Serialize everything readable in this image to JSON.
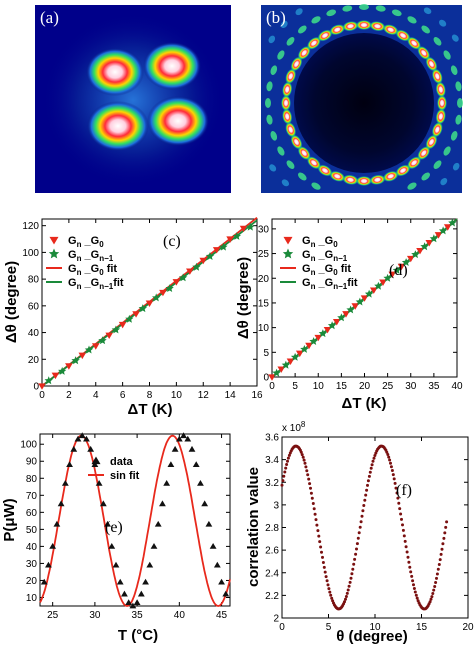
{
  "images": [
    {
      "label": "(a)",
      "kind": "four-lobe-intensity"
    },
    {
      "label": "(b)",
      "kind": "ring-of-spots",
      "spot_count": 36
    }
  ],
  "chart_data": [
    {
      "id": "c",
      "type": "scatter",
      "panel_label": "(c)",
      "xlabel": "ΔT (K)",
      "ylabel": "Δθ (degree)",
      "xlim": [
        0,
        16
      ],
      "ylim": [
        0,
        125
      ],
      "xticks": [
        0,
        2,
        4,
        6,
        8,
        10,
        12,
        14,
        16
      ],
      "yticks": [
        0,
        20,
        40,
        60,
        80,
        100,
        120
      ],
      "legend_position": "top-left",
      "series": [
        {
          "name": "Gn_G0",
          "display": [
            "G",
            "n",
            " _G",
            "0",
            ""
          ],
          "marker": "triangle-down",
          "color": "#e8291c",
          "x": [
            0,
            1,
            2,
            3,
            4,
            5,
            6,
            7,
            8,
            9,
            10,
            11,
            12,
            13,
            14,
            15
          ],
          "y": [
            0,
            8,
            15,
            23,
            30,
            38,
            46,
            54,
            62,
            70,
            78,
            86,
            94,
            102,
            110,
            118
          ]
        },
        {
          "name": "Gn_Gn-1",
          "display": [
            "G",
            "n",
            " _G",
            "n−1",
            ""
          ],
          "marker": "star",
          "color": "#1a8a3a",
          "x": [
            0.5,
            1.5,
            2.5,
            3.5,
            4.5,
            5.5,
            6.5,
            7.5,
            8.5,
            9.5,
            10.5,
            11.5,
            12.5,
            13.5,
            14.5,
            15.5
          ],
          "y": [
            4,
            11,
            19,
            27,
            34,
            42,
            50,
            58,
            66,
            73,
            81,
            89,
            97,
            104,
            112,
            119
          ]
        },
        {
          "name": "Gn_G0 fit",
          "display": [
            "G",
            "n",
            " _G",
            "0",
            "  fit"
          ],
          "marker": "line",
          "color": "#e8291c",
          "x": [
            0,
            16
          ],
          "y": [
            0,
            126
          ]
        },
        {
          "name": "Gn_Gn-1fit",
          "display": [
            "G",
            "n",
            " _G",
            "n−1",
            "fit"
          ],
          "marker": "line",
          "color": "#1a8a3a",
          "x": [
            0,
            16
          ],
          "y": [
            0,
            124
          ]
        }
      ]
    },
    {
      "id": "d",
      "type": "scatter",
      "panel_label": "(d)",
      "xlabel": "ΔT (K)",
      "ylabel": "Δθ (degree)",
      "xlim": [
        0,
        40
      ],
      "ylim": [
        0,
        32
      ],
      "xticks": [
        0,
        5,
        10,
        15,
        20,
        25,
        30,
        35,
        40
      ],
      "yticks": [
        0,
        5,
        10,
        15,
        20,
        25,
        30
      ],
      "legend_position": "top-left",
      "series": [
        {
          "name": "Gn_G0",
          "display": [
            "G",
            "n",
            " _G",
            "0",
            ""
          ],
          "marker": "triangle-down",
          "color": "#e8291c",
          "x": [
            0,
            2,
            4,
            6,
            8,
            10,
            12,
            14,
            16,
            18,
            20,
            22,
            24,
            26,
            28,
            30,
            32,
            34,
            36,
            38
          ],
          "y": [
            0,
            1.6,
            3.2,
            4.8,
            6.4,
            8.0,
            9.6,
            11.2,
            12.8,
            14.4,
            16.0,
            17.6,
            19.2,
            20.8,
            22.4,
            24.0,
            25.6,
            27.2,
            28.8,
            30.4
          ]
        },
        {
          "name": "Gn_Gn-1",
          "display": [
            "G",
            "n",
            " _G",
            "n−1",
            ""
          ],
          "marker": "star",
          "color": "#1a8a3a",
          "x": [
            1,
            3,
            5,
            7,
            9,
            11,
            13,
            15,
            17,
            19,
            21,
            23,
            25,
            27,
            29,
            31,
            33,
            35,
            37,
            39
          ],
          "y": [
            0.8,
            2.4,
            4.0,
            5.6,
            7.2,
            8.8,
            10.4,
            12.0,
            13.6,
            15.2,
            16.8,
            18.4,
            20.0,
            21.6,
            23.2,
            24.8,
            26.4,
            28.0,
            29.6,
            31.2
          ]
        },
        {
          "name": "Gn_G0 fit",
          "display": [
            "G",
            "n",
            " _G",
            "0",
            "  fit"
          ],
          "marker": "line",
          "color": "#e8291c",
          "x": [
            0,
            40
          ],
          "y": [
            0,
            32
          ]
        },
        {
          "name": "Gn_Gn-1fit",
          "display": [
            "G",
            "n",
            " _G",
            "n−1",
            "fit"
          ],
          "marker": "line",
          "color": "#1a8a3a",
          "x": [
            0,
            40
          ],
          "y": [
            0,
            32
          ]
        }
      ]
    },
    {
      "id": "e",
      "type": "scatter",
      "panel_label": "(e)",
      "xlabel": "T (°C)",
      "ylabel": "P(μW)",
      "xlim": [
        23.5,
        46
      ],
      "ylim": [
        5,
        106
      ],
      "xticks": [
        25,
        30,
        35,
        40,
        45
      ],
      "yticks": [
        10,
        20,
        30,
        40,
        50,
        60,
        70,
        80,
        90,
        100
      ],
      "legend_position": "top-center",
      "fit_model": {
        "mean": 55,
        "amplitude": 50,
        "period": 10.8,
        "peak_at": 28.4
      },
      "series": [
        {
          "name": "data",
          "marker": "triangle-up",
          "color": "#111111",
          "x": [
            24.0,
            24.5,
            25.0,
            25.5,
            26.0,
            26.5,
            27.0,
            27.5,
            28.0,
            28.5,
            29.0,
            29.5,
            30.0,
            30.5,
            31.0,
            31.5,
            32.0,
            32.5,
            33.0,
            33.5,
            34.0,
            34.5,
            35.0,
            35.5,
            36.0,
            36.5,
            37.0,
            37.5,
            38.0,
            38.5,
            39.0,
            39.5,
            40.0,
            40.5,
            41.0,
            41.5,
            42.0,
            42.5,
            43.0,
            43.5,
            44.0,
            44.5,
            45.0,
            45.5
          ],
          "y": [
            19,
            29,
            40,
            53,
            65,
            77,
            88,
            97,
            103,
            105,
            103,
            97,
            88,
            77,
            65,
            53,
            40,
            29,
            19,
            12,
            7,
            5,
            7,
            12,
            19,
            29,
            40,
            53,
            65,
            77,
            88,
            97,
            103,
            105,
            103,
            97,
            88,
            77,
            65,
            53,
            40,
            29,
            19,
            12
          ]
        },
        {
          "name": "sin fit",
          "marker": "line",
          "color": "#e8291c"
        }
      ]
    },
    {
      "id": "f",
      "type": "scatter",
      "panel_label": "(f)",
      "xlabel": "θ (degree)",
      "ylabel": "correlation value",
      "xlim": [
        0,
        20
      ],
      "ylim": [
        2.0,
        3.6
      ],
      "xticks": [
        0,
        5,
        10,
        15,
        20
      ],
      "yticks": [
        2.0,
        2.2,
        2.4,
        2.6,
        2.8,
        3.0,
        3.2,
        3.4,
        3.6
      ],
      "ytick_labels": [
        "2",
        "2.2",
        "2.4",
        "2.6",
        "2.8",
        "3",
        "3.2",
        "3.4",
        "3.6"
      ],
      "y_multiplier": "x 10",
      "y_multiplier_exp": "8",
      "curve_model": {
        "mean": 2.8,
        "amplitude": 0.72,
        "period": 9.2,
        "peak_at": 1.5
      },
      "series": [
        {
          "name": "correlation",
          "marker": "dot",
          "color": "#7a1010",
          "x_start": 0,
          "x_end": 17.7,
          "samples": 180
        }
      ]
    }
  ]
}
